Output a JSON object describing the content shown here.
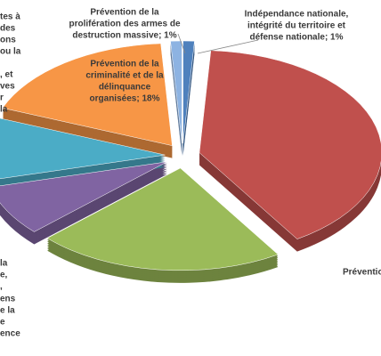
{
  "chart_data": {
    "type": "pie",
    "slices": [
      {
        "label": [
          "Indépendance nationale,",
          "intégrité du territoire et",
          "défense nationale; 1%"
        ],
        "value": 1,
        "color": "#4f81bd"
      },
      {
        "label": [
          "Préventio"
        ],
        "value": 40,
        "color": "#c0504d"
      },
      {
        "label": [
          "la",
          "e,",
          ","
        ],
        "value": 22,
        "color": "#9bbb59"
      },
      {
        "label": [
          ", et",
          "ves",
          "r",
          "la"
        ],
        "value": 8,
        "color": "#8064a2"
      },
      {
        "label": [
          "tes à",
          "des",
          "ons",
          "ou la"
        ],
        "value": 10,
        "color": "#4bacc6"
      },
      {
        "label": [
          "Prévention de la",
          "criminalité et de la",
          "délinquance",
          "organisées; 18%"
        ],
        "value": 18,
        "color": "#f79646"
      },
      {
        "label": [
          "Prévention de la",
          "prolifération des armes de",
          "destruction massive; 1%"
        ],
        "value": 1,
        "color": "#8db3e2"
      }
    ],
    "cropped_label": [
      "ens",
      "e la",
      "e",
      "ence"
    ]
  }
}
